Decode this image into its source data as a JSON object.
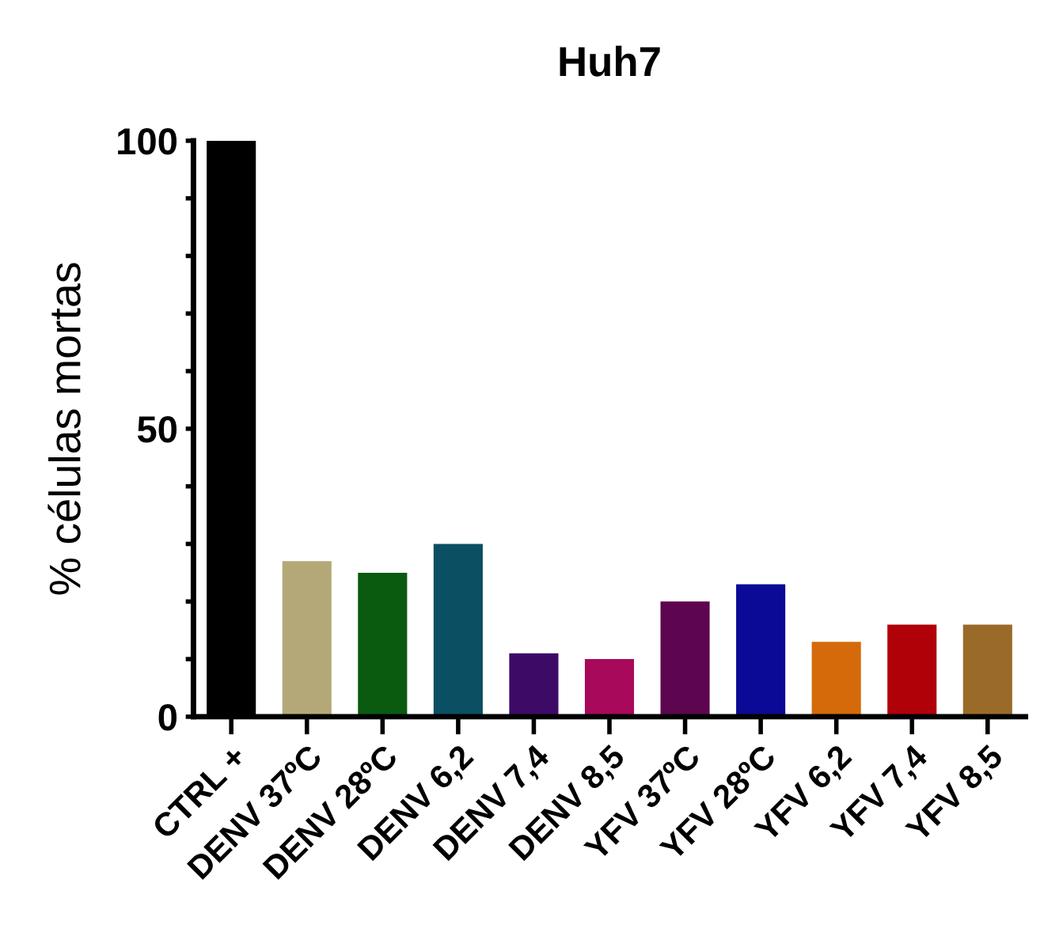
{
  "chart_data": {
    "type": "bar",
    "title": "Huh7",
    "ylabel": "% células mortas",
    "categories": [
      "CTRL +",
      "DENV 37ºC",
      "DENV 28ºC",
      "DENV 6,2",
      "DENV 7,4",
      "DENV 8,5",
      "YFV 37ºC",
      "YFV 28ºC",
      "YFV 6,2",
      "YFV 7,4",
      "YFV 8,5"
    ],
    "values": [
      100,
      27,
      25,
      30,
      11,
      10,
      20,
      23,
      13,
      16,
      16
    ],
    "colors": [
      "#000000",
      "#b5a878",
      "#0a5a10",
      "#0b4f63",
      "#3d0a66",
      "#a8095a",
      "#5e0550",
      "#0a0a96",
      "#d46a0a",
      "#b00008",
      "#9a6a28"
    ],
    "ylim": [
      0,
      100
    ],
    "yticks": [
      0,
      {
        "value": 10,
        "label": null
      },
      {
        "value": 20,
        "label": null
      },
      {
        "value": 30,
        "label": null
      },
      {
        "value": 40,
        "label": null
      },
      50,
      {
        "value": 60,
        "label": null
      },
      {
        "value": 70,
        "label": null
      },
      {
        "value": 80,
        "label": null
      },
      {
        "value": 90,
        "label": null
      },
      100
    ],
    "grid": false,
    "legend": false
  }
}
